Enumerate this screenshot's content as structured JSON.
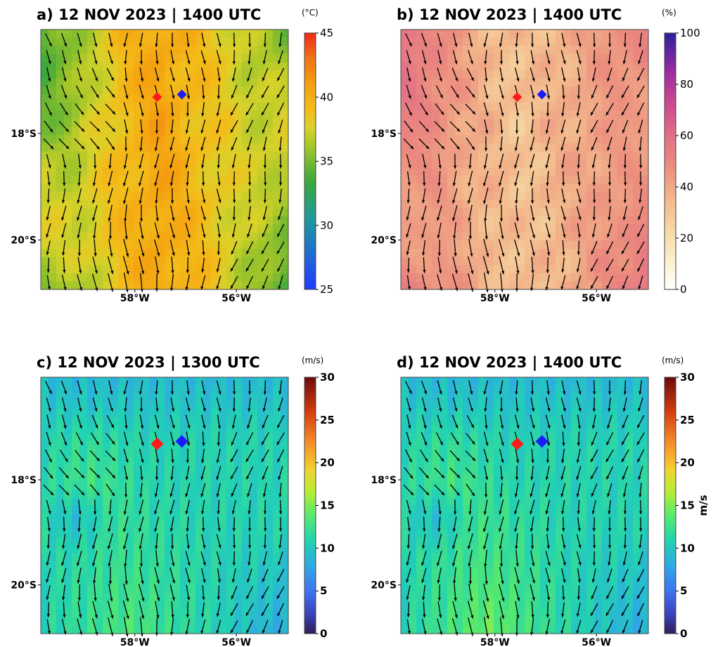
{
  "figure": {
    "panels": [
      {
        "id": "a",
        "title": "a) 12 NOV 2023 | 1400 UTC",
        "unit": "(°C)",
        "colormap": "temperature-jet",
        "field": "temp",
        "colorbar_ticks": [
          "45",
          "40",
          "35",
          "30",
          "25"
        ],
        "colorbar_bold": false,
        "colorbar_side_label": "",
        "marker_size": "small",
        "lat_labels": [
          "18°S",
          "20°S"
        ],
        "lon_labels": [
          "58°W",
          "56°W"
        ]
      },
      {
        "id": "b",
        "title": "b) 12 NOV 2023 | 1400 UTC",
        "unit": "(%)",
        "colormap": "humidity-plasma",
        "field": "hum",
        "colorbar_ticks": [
          "100",
          "80",
          "60",
          "40",
          "20",
          "0"
        ],
        "colorbar_bold": false,
        "colorbar_side_label": "",
        "marker_size": "small",
        "lat_labels": [
          "18°S",
          "20°S"
        ],
        "lon_labels": [
          "58°W",
          "56°W"
        ]
      },
      {
        "id": "c",
        "title": "c) 12 NOV 2023 | 1300 UTC",
        "unit": "(m/s)",
        "colormap": "wind-turbo",
        "field": "wind13",
        "colorbar_ticks": [
          "30",
          "25",
          "20",
          "15",
          "10",
          "5",
          "0"
        ],
        "colorbar_bold": true,
        "colorbar_side_label": "",
        "marker_size": "large",
        "lat_labels": [
          "18°S",
          "20°S"
        ],
        "lon_labels": [
          "58°W",
          "56°W"
        ]
      },
      {
        "id": "d",
        "title": "d) 12 NOV 2023 | 1400 UTC",
        "unit": "(m/s)",
        "colormap": "wind-turbo",
        "field": "wind14",
        "colorbar_ticks": [
          "30",
          "25",
          "20",
          "15",
          "10",
          "5",
          "0"
        ],
        "colorbar_bold": true,
        "colorbar_side_label": "m/s",
        "marker_size": "large",
        "lat_labels": [
          "18°S",
          "20°S"
        ],
        "lon_labels": [
          "58°W",
          "56°W"
        ]
      }
    ],
    "markers": [
      {
        "name": "red-diamond",
        "color": "#ff1a1a"
      },
      {
        "name": "blue-diamond",
        "color": "#1a1aff"
      }
    ]
  }
}
